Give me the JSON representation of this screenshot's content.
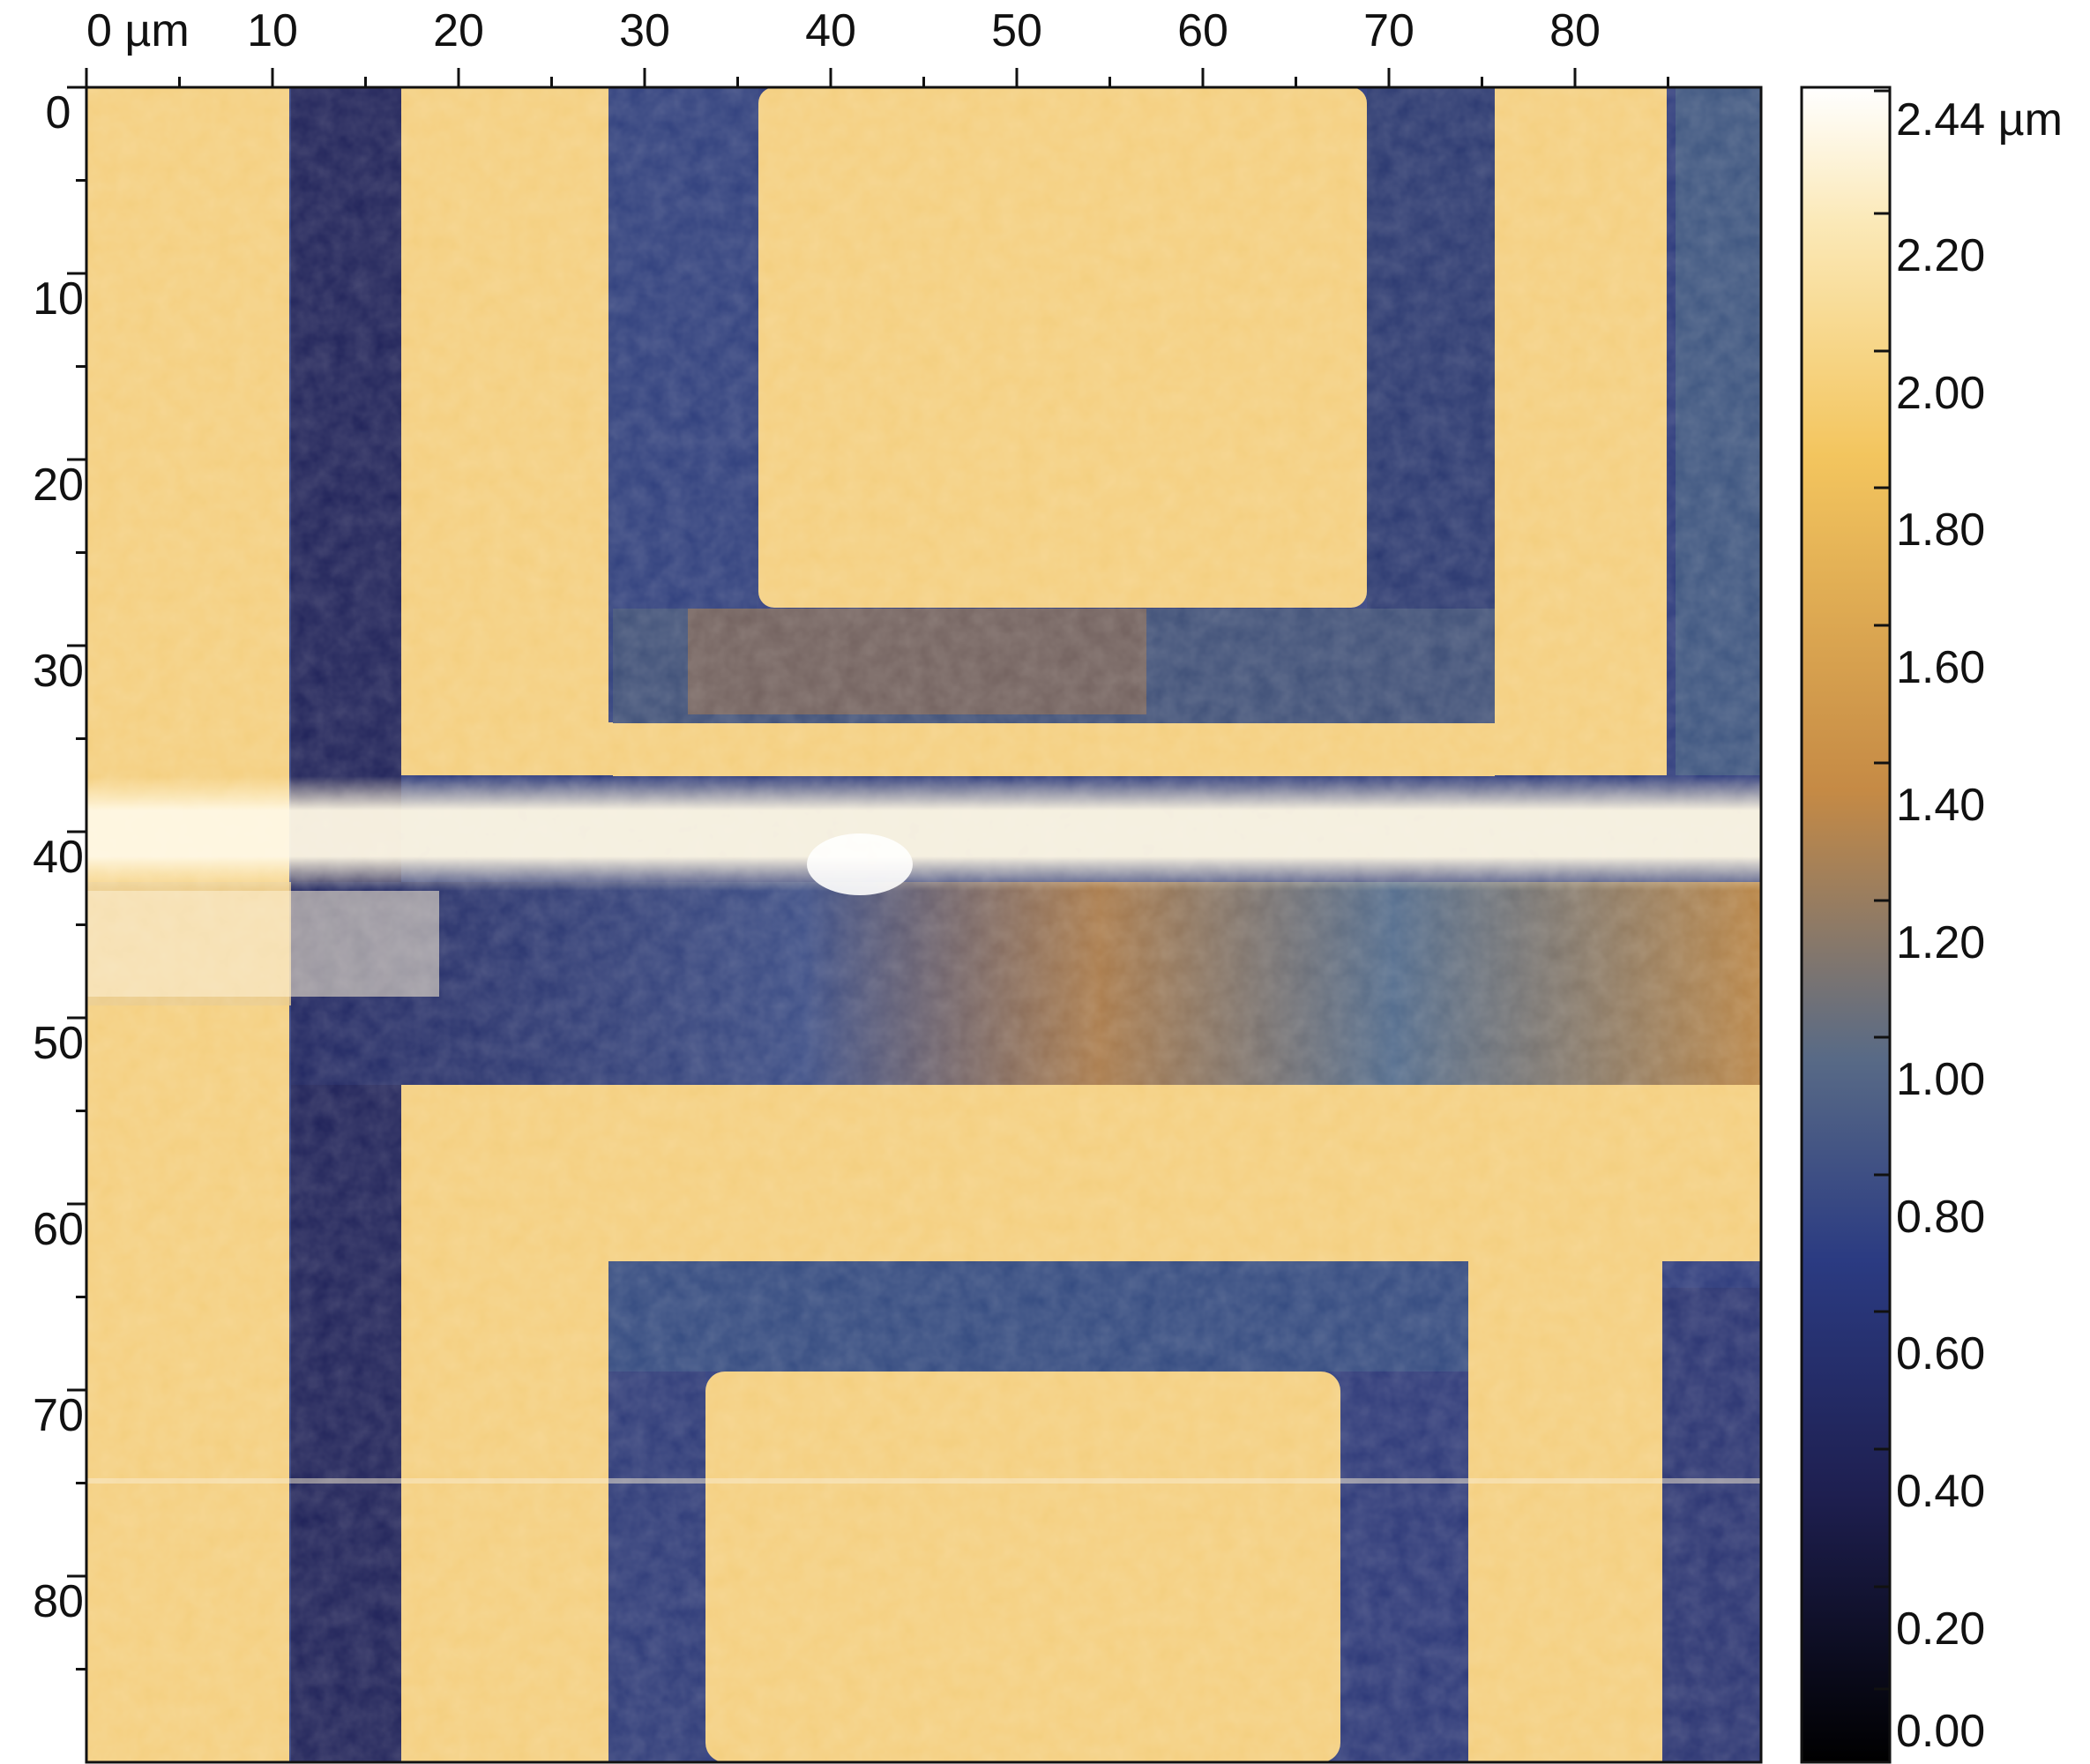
{
  "x_axis": {
    "ticks": [
      "0 µm",
      "10",
      "20",
      "30",
      "40",
      "50",
      "60",
      "70",
      "80"
    ]
  },
  "y_axis": {
    "ticks": [
      "0",
      "10",
      "20",
      "30",
      "40",
      "50",
      "60",
      "70",
      "80"
    ]
  },
  "colorbar": {
    "labels": [
      "2.44 µm",
      "2.20",
      "2.00",
      "1.80",
      "1.60",
      "1.40",
      "1.20",
      "1.00",
      "0.80",
      "0.60",
      "0.40",
      "0.20",
      "0.00"
    ],
    "colors": [
      "#000000",
      "#1e1f50",
      "#2b3b82",
      "#586a86",
      "#c58a45",
      "#f3c55e",
      "#fbe9b8",
      "#ffffff"
    ]
  },
  "image": {
    "description_colors": {
      "raised": "#f4cf7f",
      "recess": "#2c3a7c",
      "streak": "#fff6dc"
    }
  }
}
